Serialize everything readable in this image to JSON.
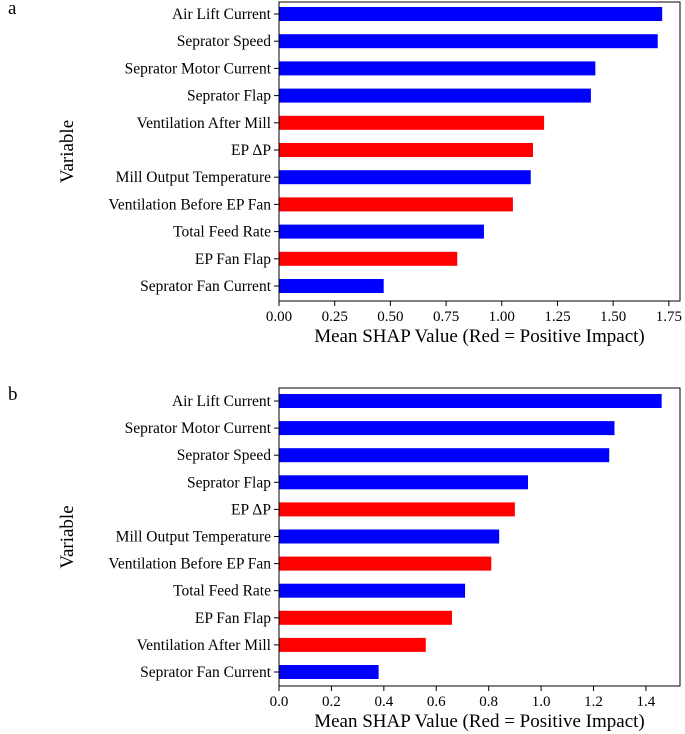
{
  "colors": {
    "positive": "#ff0000",
    "negative": "#0000ff"
  },
  "chart_data": [
    {
      "panel": "a",
      "type": "bar",
      "orientation": "horizontal",
      "xlabel": "Mean SHAP Value (Red = Positive Impact)",
      "ylabel": "Variable",
      "xlim": [
        0,
        1.8
      ],
      "xticks": [
        "0.00",
        "0.25",
        "0.50",
        "0.75",
        "1.00",
        "1.25",
        "1.50",
        "1.75"
      ],
      "xtick_values": [
        0,
        0.25,
        0.5,
        0.75,
        1.0,
        1.25,
        1.5,
        1.75
      ],
      "categories": [
        "Air Lift Current",
        "Seprator Speed",
        "Seprator Motor Current",
        "Seprator Flap",
        "Ventilation After Mill",
        "EP ΔP",
        "Mill Output Temperature",
        "Ventilation Before EP Fan",
        "Total Feed Rate",
        "EP Fan Flap",
        "Seprator Fan Current"
      ],
      "values": [
        1.72,
        1.7,
        1.42,
        1.4,
        1.19,
        1.14,
        1.13,
        1.05,
        0.92,
        0.8,
        0.47
      ],
      "impact": [
        "negative",
        "negative",
        "negative",
        "negative",
        "positive",
        "positive",
        "negative",
        "positive",
        "negative",
        "positive",
        "negative"
      ]
    },
    {
      "panel": "b",
      "type": "bar",
      "orientation": "horizontal",
      "xlabel": "Mean SHAP Value (Red = Positive Impact)",
      "ylabel": "Variable",
      "xlim": [
        0,
        1.53
      ],
      "xticks": [
        "0.0",
        "0.2",
        "0.4",
        "0.6",
        "0.8",
        "1.0",
        "1.2",
        "1.4"
      ],
      "xtick_values": [
        0,
        0.2,
        0.4,
        0.6,
        0.8,
        1.0,
        1.2,
        1.4
      ],
      "categories": [
        "Air Lift Current",
        "Seprator Motor Current",
        "Seprator Speed",
        "Seprator Flap",
        "EP ΔP",
        "Mill Output Temperature",
        "Ventilation Before EP Fan",
        "Total Feed Rate",
        "EP Fan Flap",
        "Ventilation After Mill",
        "Seprator Fan Current"
      ],
      "values": [
        1.46,
        1.28,
        1.26,
        0.95,
        0.9,
        0.84,
        0.81,
        0.71,
        0.66,
        0.56,
        0.38
      ],
      "impact": [
        "negative",
        "negative",
        "negative",
        "negative",
        "positive",
        "negative",
        "positive",
        "negative",
        "positive",
        "positive",
        "negative"
      ]
    }
  ]
}
